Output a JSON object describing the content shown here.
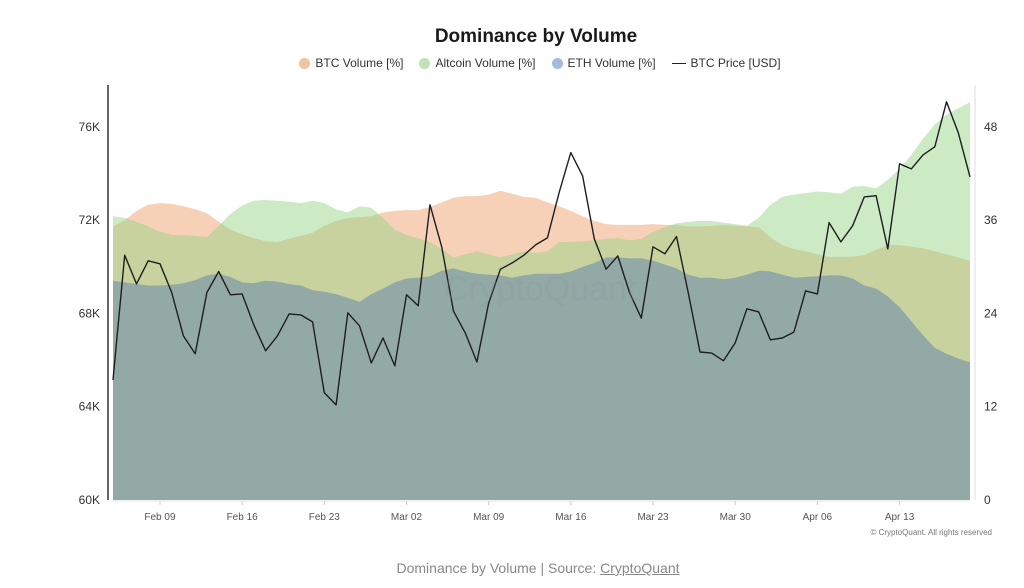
{
  "chart_data": {
    "type": "area",
    "title": "Dominance by Volume",
    "legend_placement": "top-center",
    "grid": false,
    "x": [
      "Feb 05",
      "Feb 06",
      "Feb 07",
      "Feb 08",
      "Feb 09",
      "Feb 10",
      "Feb 11",
      "Feb 12",
      "Feb 13",
      "Feb 14",
      "Feb 15",
      "Feb 16",
      "Feb 17",
      "Feb 18",
      "Feb 19",
      "Feb 20",
      "Feb 21",
      "Feb 22",
      "Feb 23",
      "Feb 24",
      "Feb 25",
      "Feb 26",
      "Feb 27",
      "Feb 28",
      "Mar 01",
      "Mar 02",
      "Mar 03",
      "Mar 04",
      "Mar 05",
      "Mar 06",
      "Mar 07",
      "Mar 08",
      "Mar 09",
      "Mar 10",
      "Mar 11",
      "Mar 12",
      "Mar 13",
      "Mar 14",
      "Mar 15",
      "Mar 16",
      "Mar 17",
      "Mar 18",
      "Mar 19",
      "Mar 20",
      "Mar 21",
      "Mar 22",
      "Mar 23",
      "Mar 24",
      "Mar 25",
      "Mar 26",
      "Mar 27",
      "Mar 28",
      "Mar 29",
      "Mar 30",
      "Mar 31",
      "Apr 01",
      "Apr 02",
      "Apr 03",
      "Apr 04",
      "Apr 05",
      "Apr 06",
      "Apr 07",
      "Apr 08",
      "Apr 09",
      "Apr 10",
      "Apr 11",
      "Apr 12",
      "Apr 13",
      "Apr 14",
      "Apr 15",
      "Apr 16",
      "Apr 17",
      "Apr 18",
      "Apr 19"
    ],
    "x_ticks": [
      "Feb 09",
      "Feb 16",
      "Feb 23",
      "Mar 02",
      "Mar 09",
      "Mar 16",
      "Mar 23",
      "Mar 30",
      "Apr 06",
      "Apr 13"
    ],
    "y_left": {
      "ticks": [
        60000,
        64000,
        68000,
        72000,
        76000
      ],
      "tick_labels": [
        "60K",
        "64K",
        "68K",
        "72K",
        "76K"
      ],
      "range": [
        60000,
        77800
      ]
    },
    "y_right": {
      "ticks": [
        0,
        12,
        24,
        36,
        48
      ],
      "tick_labels": [
        "0",
        "12",
        "24",
        "36",
        "48"
      ],
      "range": [
        0,
        53.4
      ]
    },
    "series": [
      {
        "name": "BTC Volume [%]",
        "type": "area",
        "axis": "right",
        "color": "#f0bf98",
        "values": [
          35.2,
          36.0,
          37.2,
          38.0,
          38.2,
          38.1,
          37.8,
          37.4,
          36.9,
          35.8,
          34.8,
          34.2,
          33.7,
          33.3,
          33.2,
          33.6,
          34.0,
          34.4,
          35.3,
          35.9,
          36.3,
          36.4,
          36.5,
          37.0,
          37.2,
          37.3,
          37.3,
          37.7,
          38.3,
          38.9,
          39.1,
          39.1,
          39.3,
          39.8,
          39.4,
          39.0,
          38.9,
          38.3,
          37.8,
          37.2,
          36.5,
          35.9,
          35.5,
          35.4,
          35.4,
          35.4,
          35.5,
          35.4,
          35.4,
          35.2,
          35.2,
          35.3,
          35.4,
          35.3,
          35.2,
          35.1,
          33.8,
          32.8,
          32.3,
          32.0,
          31.6,
          31.3,
          31.3,
          31.3,
          31.5,
          32.2,
          32.8,
          32.8,
          32.6,
          32.4,
          32.0,
          31.6,
          31.2,
          30.8
        ]
      },
      {
        "name": "Altcoin Volume [%]",
        "type": "area",
        "axis": "right",
        "color": "#b8e0aa",
        "values": [
          36.5,
          36.3,
          35.8,
          35.2,
          34.5,
          34.1,
          34.1,
          34.0,
          33.8,
          35.3,
          36.8,
          37.9,
          38.5,
          38.6,
          38.5,
          38.4,
          38.2,
          38.5,
          38.2,
          37.4,
          37.0,
          37.8,
          37.6,
          36.3,
          34.8,
          34.1,
          33.7,
          33.2,
          32.3,
          31.2,
          31.6,
          32.0,
          31.6,
          31.2,
          31.6,
          32.0,
          31.8,
          32.0,
          33.2,
          33.2,
          33.3,
          33.4,
          33.6,
          33.7,
          33.4,
          33.6,
          34.5,
          35.1,
          35.6,
          35.8,
          35.9,
          35.9,
          35.7,
          35.5,
          35.3,
          36.3,
          38.0,
          39.0,
          39.3,
          39.5,
          39.7,
          39.6,
          39.4,
          40.3,
          40.4,
          40.1,
          41.2,
          42.6,
          44.4,
          46.5,
          48.3,
          49.6,
          50.4,
          51.2
        ]
      },
      {
        "name": "ETH Volume [%]",
        "type": "area",
        "axis": "right",
        "color": "#8fa8d8",
        "values": [
          28.2,
          28.0,
          27.8,
          27.6,
          27.6,
          27.7,
          27.9,
          28.3,
          28.9,
          29.1,
          28.7,
          28.0,
          27.9,
          28.2,
          28.1,
          27.8,
          27.6,
          27.0,
          26.8,
          26.5,
          26.0,
          25.5,
          26.5,
          27.2,
          28.0,
          28.5,
          28.6,
          28.8,
          29.5,
          29.8,
          29.4,
          29.1,
          29.0,
          28.9,
          28.6,
          28.9,
          29.1,
          29.1,
          29.1,
          29.4,
          30.0,
          30.5,
          31.2,
          31.2,
          31.1,
          31.1,
          30.8,
          30.3,
          29.8,
          29.0,
          28.6,
          28.6,
          28.4,
          28.6,
          29.0,
          29.5,
          29.4,
          29.0,
          28.6,
          28.7,
          28.8,
          28.9,
          28.9,
          28.5,
          27.6,
          27.2,
          26.2,
          24.8,
          23.0,
          21.2,
          19.6,
          18.8,
          18.2,
          17.7
        ]
      },
      {
        "name": "BTC Price [USD]",
        "type": "line",
        "axis": "left",
        "color": "#1e1e1e",
        "values": [
          65150,
          70500,
          69270,
          70260,
          70130,
          68900,
          67040,
          66270,
          68900,
          69800,
          68800,
          68840,
          67500,
          66400,
          67040,
          67980,
          67940,
          67640,
          64600,
          64080,
          68030,
          67470,
          65880,
          66950,
          65750,
          68800,
          68330,
          72660,
          70860,
          68100,
          67170,
          65920,
          68450,
          69900,
          70170,
          70500,
          70940,
          71240,
          73180,
          74900,
          73900,
          71200,
          69900,
          70470,
          68900,
          67800,
          70860,
          70560,
          71300,
          68900,
          66350,
          66300,
          65970,
          66740,
          68200,
          68070,
          66870,
          66950,
          67200,
          68970,
          68840,
          71900,
          71070,
          71760,
          73000,
          73050,
          70770,
          74420,
          74200,
          74800,
          75150,
          77080,
          75750,
          73860
        ]
      }
    ]
  },
  "watermark": "CryptoQuant",
  "copyright": "© CryptoQuant. All rights reserved",
  "caption": {
    "prefix": "Dominance by Volume | Source: ",
    "link": "CryptoQuant"
  }
}
